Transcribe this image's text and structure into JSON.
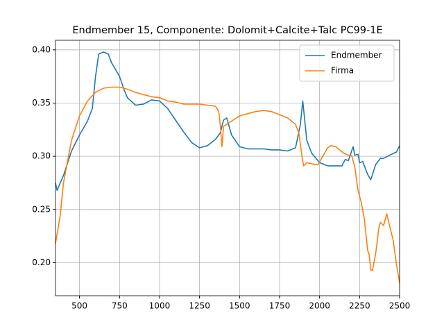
{
  "chart_data": {
    "type": "line",
    "title": "Endmember 15, Componente: Dolomit+Calcite+Talc PC99-1E",
    "series": [
      {
        "name": "Endmember",
        "color": "#1f77b4",
        "x": [
          350,
          360,
          400,
          450,
          500,
          550,
          580,
          600,
          620,
          650,
          680,
          700,
          750,
          780,
          800,
          850,
          900,
          950,
          1000,
          1050,
          1100,
          1150,
          1200,
          1250,
          1300,
          1350,
          1380,
          1400,
          1420,
          1450,
          1500,
          1550,
          1600,
          1650,
          1700,
          1750,
          1800,
          1850,
          1880,
          1895,
          1920,
          1950,
          2000,
          2050,
          2100,
          2140,
          2160,
          2180,
          2200,
          2210,
          2220,
          2240,
          2250,
          2270,
          2300,
          2320,
          2350,
          2380,
          2400,
          2450,
          2480,
          2500
        ],
        "values": [
          0.275,
          0.268,
          0.282,
          0.305,
          0.32,
          0.333,
          0.345,
          0.375,
          0.396,
          0.398,
          0.396,
          0.388,
          0.375,
          0.362,
          0.355,
          0.348,
          0.349,
          0.353,
          0.352,
          0.345,
          0.334,
          0.323,
          0.313,
          0.308,
          0.31,
          0.316,
          0.322,
          0.334,
          0.336,
          0.32,
          0.309,
          0.307,
          0.307,
          0.307,
          0.306,
          0.306,
          0.305,
          0.308,
          0.33,
          0.352,
          0.315,
          0.303,
          0.294,
          0.291,
          0.291,
          0.291,
          0.297,
          0.296,
          0.305,
          0.309,
          0.301,
          0.302,
          0.294,
          0.295,
          0.283,
          0.278,
          0.292,
          0.298,
          0.298,
          0.302,
          0.304,
          0.31
        ]
      },
      {
        "name": "Firma",
        "color": "#ff7f0e",
        "x": [
          350,
          380,
          400,
          450,
          500,
          550,
          600,
          650,
          700,
          750,
          800,
          850,
          900,
          950,
          1000,
          1050,
          1100,
          1150,
          1200,
          1250,
          1300,
          1350,
          1370,
          1380,
          1390,
          1400,
          1450,
          1500,
          1550,
          1600,
          1650,
          1700,
          1750,
          1800,
          1850,
          1870,
          1890,
          1900,
          1920,
          1950,
          1990,
          2020,
          2050,
          2070,
          2100,
          2150,
          2180,
          2200,
          2220,
          2240,
          2260,
          2280,
          2300,
          2310,
          2320,
          2330,
          2350,
          2370,
          2380,
          2400,
          2420,
          2440,
          2460,
          2480,
          2500
        ],
        "values": [
          0.218,
          0.245,
          0.275,
          0.315,
          0.338,
          0.352,
          0.36,
          0.364,
          0.365,
          0.365,
          0.363,
          0.36,
          0.358,
          0.356,
          0.355,
          0.352,
          0.351,
          0.349,
          0.349,
          0.349,
          0.348,
          0.347,
          0.342,
          0.329,
          0.309,
          0.328,
          0.333,
          0.338,
          0.34,
          0.342,
          0.343,
          0.342,
          0.339,
          0.336,
          0.33,
          0.322,
          0.3,
          0.291,
          0.294,
          0.293,
          0.292,
          0.3,
          0.308,
          0.31,
          0.309,
          0.303,
          0.301,
          0.301,
          0.29,
          0.268,
          0.257,
          0.241,
          0.212,
          0.207,
          0.193,
          0.193,
          0.208,
          0.232,
          0.238,
          0.235,
          0.246,
          0.233,
          0.221,
          0.199,
          0.181
        ]
      }
    ],
    "xlim": [
      350,
      2500
    ],
    "ylim": [
      0.169,
      0.409
    ],
    "xticks": [
      500,
      750,
      1000,
      1250,
      1500,
      1750,
      2000,
      2250,
      2500
    ],
    "yticks": [
      {
        "value": 0.2,
        "label": "0.20"
      },
      {
        "value": 0.25,
        "label": "0.25"
      },
      {
        "value": 0.3,
        "label": "0.30"
      },
      {
        "value": 0.35,
        "label": "0.35"
      },
      {
        "value": 0.4,
        "label": "0.40"
      }
    ],
    "grid": true,
    "legend": "upper right"
  }
}
